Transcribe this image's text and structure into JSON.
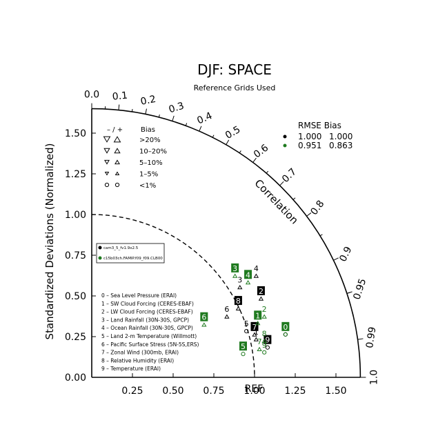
{
  "chart_data": {
    "type": "scatter",
    "subtype": "taylor-diagram",
    "title": "DJF: SPACE",
    "subtitle": "Reference Grids Used",
    "ylabel": "Standardized Deviations (Normalized)",
    "arc_label": "Correlation",
    "ref_label": "REF",
    "x_ticks": [
      "0.25",
      "0.50",
      "0.75",
      "1.00",
      "1.25",
      "1.50"
    ],
    "y_ticks": [
      "0.00",
      "0.25",
      "0.50",
      "0.75",
      "1.00",
      "1.25",
      "1.50"
    ],
    "corr_ticks": [
      {
        "v": 0.0,
        "label": "0.0"
      },
      {
        "v": 0.1,
        "label": "0.1"
      },
      {
        "v": 0.2,
        "label": "0.2"
      },
      {
        "v": 0.3,
        "label": "0.3"
      },
      {
        "v": 0.4,
        "label": "0.4"
      },
      {
        "v": 0.5,
        "label": "0.5"
      },
      {
        "v": 0.6,
        "label": "0.6"
      },
      {
        "v": 0.7,
        "label": "0.7"
      },
      {
        "v": 0.8,
        "label": "0.8"
      },
      {
        "v": 0.9,
        "label": "0.9"
      },
      {
        "v": 0.95,
        "label": "0.95"
      },
      {
        "v": 0.99,
        "label": "0.99"
      },
      {
        "v": 1.0,
        "label": "1.0"
      }
    ],
    "max_std": 1.65,
    "ref_std": 1.0,
    "colors": {
      "case1": "#000000",
      "case2": "#1f7a1f"
    },
    "rmse_bias": {
      "header": "RMSE  Bias",
      "rows": [
        {
          "color": "#000000",
          "rmse": "1.000",
          "bias": "1.000"
        },
        {
          "color": "#1f7a1f",
          "rmse": "0.951",
          "bias": "0.863"
        }
      ]
    },
    "bias_key": {
      "header_neg_pos": "–  /  +",
      "header_bias": "Bias",
      "rows": [
        {
          "label": ">20%",
          "size": 4.5,
          "shape": "triangle"
        },
        {
          "label": "10–20%",
          "size": 3.8,
          "shape": "triangle"
        },
        {
          "label": "5–10%",
          "size": 3.1,
          "shape": "triangle"
        },
        {
          "label": "1–5%",
          "size": 2.4,
          "shape": "triangle"
        },
        {
          "label": "<1%",
          "size": 2.6,
          "shape": "circle"
        }
      ]
    },
    "cases": [
      {
        "name": "cam3_5_fv1.9x2.5",
        "color": "#000000"
      },
      {
        "name": "c15b03ch.FAMIP.f09_f09.CLB00",
        "color": "#1f7a1f"
      }
    ],
    "variables": [
      "0 – Sea Level Pressure (ERAI)",
      "1 – SW Cloud Forcing (CERES-EBAF)",
      "2 – LW Cloud Forcing (CERES-EBAF)",
      "3 – Land Rainfall (30N-30S, GPCP)",
      "4 – Ocean Rainfall (30N-30S, GPCP)",
      "5 – Land 2-m Temperature (Willmott)",
      "6 – Pacific Surface Stress (5N-5S,ERS)",
      "7 – Zonal Wind (300mb, ERAI)",
      "8 – Relative Humidity (ERAI)",
      "9 – Temperature (ERAI)"
    ],
    "series": [
      {
        "name": "cam3_5_fv1.9x2.5",
        "color": "#000000",
        "points": [
          {
            "id": "0",
            "x": 1.19,
            "y": 0.31,
            "marker": "circle",
            "boxed": false
          },
          {
            "id": "1",
            "x": 1.01,
            "y": 0.28,
            "marker": "triangle",
            "boxed": false
          },
          {
            "id": "2",
            "x": 1.04,
            "y": 0.53,
            "marker": "triangle",
            "boxed": true
          },
          {
            "id": "3",
            "x": 0.91,
            "y": 0.6,
            "marker": "triangle",
            "boxed": false
          },
          {
            "id": "4",
            "x": 1.01,
            "y": 0.67,
            "marker": "triangle",
            "boxed": false
          },
          {
            "id": "5",
            "x": 0.95,
            "y": 0.33,
            "marker": "circle",
            "boxed": false
          },
          {
            "id": "6",
            "x": 0.83,
            "y": 0.42,
            "marker": "triangle",
            "boxed": false
          },
          {
            "id": "7",
            "x": 1.0,
            "y": 0.31,
            "marker": "triangle",
            "boxed": true
          },
          {
            "id": "8",
            "x": 0.9,
            "y": 0.47,
            "marker": "triangle",
            "boxed": true
          },
          {
            "id": "9",
            "x": 1.08,
            "y": 0.23,
            "marker": "circle",
            "boxed": true
          }
        ]
      },
      {
        "name": "c15b03ch.FAMIP.f09_f09.CLB00",
        "color": "#1f7a1f",
        "points": [
          {
            "id": "0",
            "x": 1.19,
            "y": 0.31,
            "marker": "circle",
            "boxed": true
          },
          {
            "id": "1",
            "x": 1.02,
            "y": 0.38,
            "marker": "triangle",
            "boxed": true
          },
          {
            "id": "2",
            "x": 1.06,
            "y": 0.42,
            "marker": "triangle",
            "boxed": false
          },
          {
            "id": "3",
            "x": 0.88,
            "y": 0.67,
            "marker": "triangle",
            "boxed": true
          },
          {
            "id": "4",
            "x": 0.96,
            "y": 0.63,
            "marker": "triangle",
            "boxed": true
          },
          {
            "id": "5",
            "x": 0.93,
            "y": 0.19,
            "marker": "circle",
            "boxed": true
          },
          {
            "id": "6",
            "x": 0.69,
            "y": 0.37,
            "marker": "triangle",
            "boxed": true
          },
          {
            "id": "7",
            "x": 1.03,
            "y": 0.22,
            "marker": "triangle",
            "boxed": false
          },
          {
            "id": "8",
            "x": 1.06,
            "y": 0.27,
            "marker": "triangle",
            "boxed": false
          },
          {
            "id": "9",
            "x": 1.06,
            "y": 0.2,
            "marker": "circle",
            "boxed": false
          }
        ]
      }
    ]
  }
}
